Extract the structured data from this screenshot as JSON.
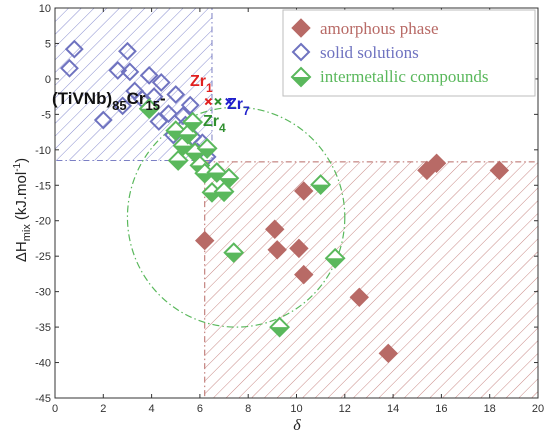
{
  "chart_data": {
    "type": "scatter",
    "xlabel": "δ",
    "ylabel_main": "ΔH",
    "ylabel_sub": "mix",
    "ylabel_unit": "(kJ.mol",
    "ylabel_unit_sup": "-1",
    "ylabel_close": ")",
    "xlim": [
      0,
      20
    ],
    "ylim": [
      -45,
      10
    ],
    "xticks": [
      "0",
      "2",
      "4",
      "6",
      "8",
      "10",
      "12",
      "14",
      "16",
      "18",
      "20"
    ],
    "yticks": [
      "10",
      "5",
      "0",
      "-5",
      "-10",
      "-15",
      "-20",
      "-25",
      "-30",
      "-35",
      "-40",
      "-45"
    ],
    "grid": false,
    "legend_position": "top-right",
    "regions": [
      {
        "series": "solid solutions",
        "x": [
          0,
          6.5
        ],
        "y": [
          -11.5,
          10
        ],
        "color": "#7b7fc4"
      },
      {
        "series": "amorphous phase",
        "x": [
          6.2,
          20
        ],
        "y": [
          -45,
          -11.7
        ],
        "color": "#b86a66"
      },
      {
        "series": "intermetallic compounds",
        "shape": "ellipse",
        "cx": 7.5,
        "cy": -19.5,
        "rx": 4.5,
        "ry": 15.5,
        "color": "#5ab85c"
      }
    ],
    "series": [
      {
        "name": "amorphous phase",
        "color": "#b86a66",
        "filled": true,
        "points": [
          [
            6.2,
            -22.8
          ],
          [
            9.1,
            -21.2
          ],
          [
            9.2,
            -24.1
          ],
          [
            10.1,
            -23.9
          ],
          [
            10.3,
            -15.8
          ],
          [
            10.3,
            -27.6
          ],
          [
            12.6,
            -30.8
          ],
          [
            13.8,
            -38.7
          ],
          [
            15.4,
            -12.9
          ],
          [
            15.8,
            -11.9
          ],
          [
            18.4,
            -12.9
          ]
        ]
      },
      {
        "name": "solid solutions",
        "color": "#6f73c0",
        "filled": false,
        "points": [
          [
            0.6,
            1.5
          ],
          [
            0.8,
            4.2
          ],
          [
            2.0,
            -5.8
          ],
          [
            2.6,
            1.2
          ],
          [
            2.8,
            -3.8
          ],
          [
            3.0,
            3.9
          ],
          [
            3.1,
            1.0
          ],
          [
            3.3,
            -1.7
          ],
          [
            3.6,
            -2.8
          ],
          [
            3.9,
            0.5
          ],
          [
            4.1,
            -2.5
          ],
          [
            4.3,
            -6.0
          ],
          [
            4.4,
            -0.5
          ],
          [
            4.7,
            -4.9
          ],
          [
            4.9,
            -7.9
          ],
          [
            5.0,
            -2.2
          ],
          [
            5.3,
            -5.2
          ],
          [
            5.4,
            -6.5
          ],
          [
            5.6,
            -3.7
          ],
          [
            5.7,
            -8.2
          ],
          [
            5.9,
            -10.3
          ],
          [
            6.1,
            -9.0
          ],
          [
            6.3,
            -11.0
          ]
        ]
      },
      {
        "name": "intermetallic compounds",
        "color": "#5ab85c",
        "filled": "half",
        "points": [
          [
            3.9,
            -4.2
          ],
          [
            5.0,
            -7.3
          ],
          [
            5.1,
            -11.5
          ],
          [
            5.3,
            -9.4
          ],
          [
            5.5,
            -7.8
          ],
          [
            5.7,
            -6.1
          ],
          [
            5.8,
            -10.4
          ],
          [
            6.0,
            -12.2
          ],
          [
            6.2,
            -13.3
          ],
          [
            6.3,
            -9.8
          ],
          [
            6.5,
            -16.0
          ],
          [
            6.7,
            -13.2
          ],
          [
            7.0,
            -15.9
          ],
          [
            7.2,
            -14.0
          ],
          [
            7.4,
            -24.5
          ],
          [
            9.3,
            -35.0
          ],
          [
            11.0,
            -14.9
          ],
          [
            11.6,
            -25.3
          ]
        ]
      }
    ],
    "markers": [
      {
        "label": "Zr",
        "sub": "1",
        "x": 6.35,
        "y": -3.2,
        "color": "#e02020"
      },
      {
        "label": "Zr",
        "sub": "4",
        "x": 6.75,
        "y": -3.2,
        "color": "#2f8f2f"
      },
      {
        "label": "Zr",
        "sub": "7",
        "x": 7.2,
        "y": -3.2,
        "color": "#1f1fcc"
      }
    ],
    "annotations": {
      "base": "(TiVNb)",
      "base_sub": "85",
      "cr": "Cr",
      "cr_sub": "15",
      "dash": "-",
      "zr1": "Zr",
      "zr1_sub": "1",
      "zr4": "Zr",
      "zr4_sub": "4",
      "zr7": "Zr",
      "zr7_sub": "7"
    }
  }
}
